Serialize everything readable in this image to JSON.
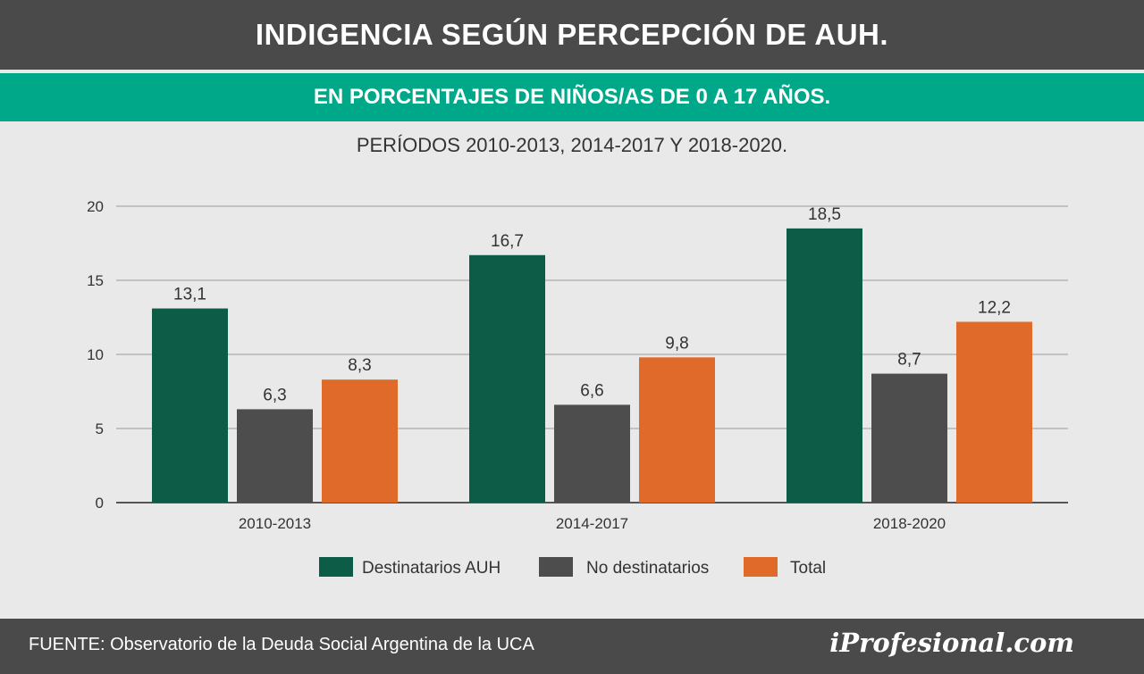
{
  "header": {
    "title": "INDIGENCIA SEGÚN PERCEPCIÓN DE AUH.",
    "subtitle": "EN PORCENTAJES DE NIÑOS/AS DE 0 A 17 AÑOS.",
    "periods": "PERÍODOS 2010-2013, 2014-2017 Y 2018-2020."
  },
  "footer": {
    "source": "FUENTE: Observatorio de la Deuda Social Argentina de la UCA",
    "logo": "iProfesional.com"
  },
  "colors": {
    "header_bg": "#4a4a4a",
    "subheader_bg": "#00a88a",
    "page_bg": "#e9e9e9"
  },
  "chart_data": {
    "type": "bar",
    "categories": [
      "2010-2013",
      "2014-2017",
      "2018-2020"
    ],
    "series": [
      {
        "name": "Destinatarios AUH",
        "values": [
          13.1,
          16.7,
          18.5
        ],
        "labels": [
          "13,1",
          "16,7",
          "18,5"
        ],
        "color": "#0d5c47"
      },
      {
        "name": "No destinatarios",
        "values": [
          6.3,
          6.6,
          8.7
        ],
        "labels": [
          "6,3",
          "6,6",
          "8,7"
        ],
        "color": "#4d4d4d"
      },
      {
        "name": "Total",
        "values": [
          8.3,
          9.8,
          12.2
        ],
        "labels": [
          "8,3",
          "9,8",
          "12,2"
        ],
        "color": "#e06a2a"
      }
    ],
    "yticks": [
      0,
      5,
      10,
      15,
      20
    ],
    "ylim": [
      0,
      20
    ],
    "grid": true,
    "legend": "bottom"
  }
}
